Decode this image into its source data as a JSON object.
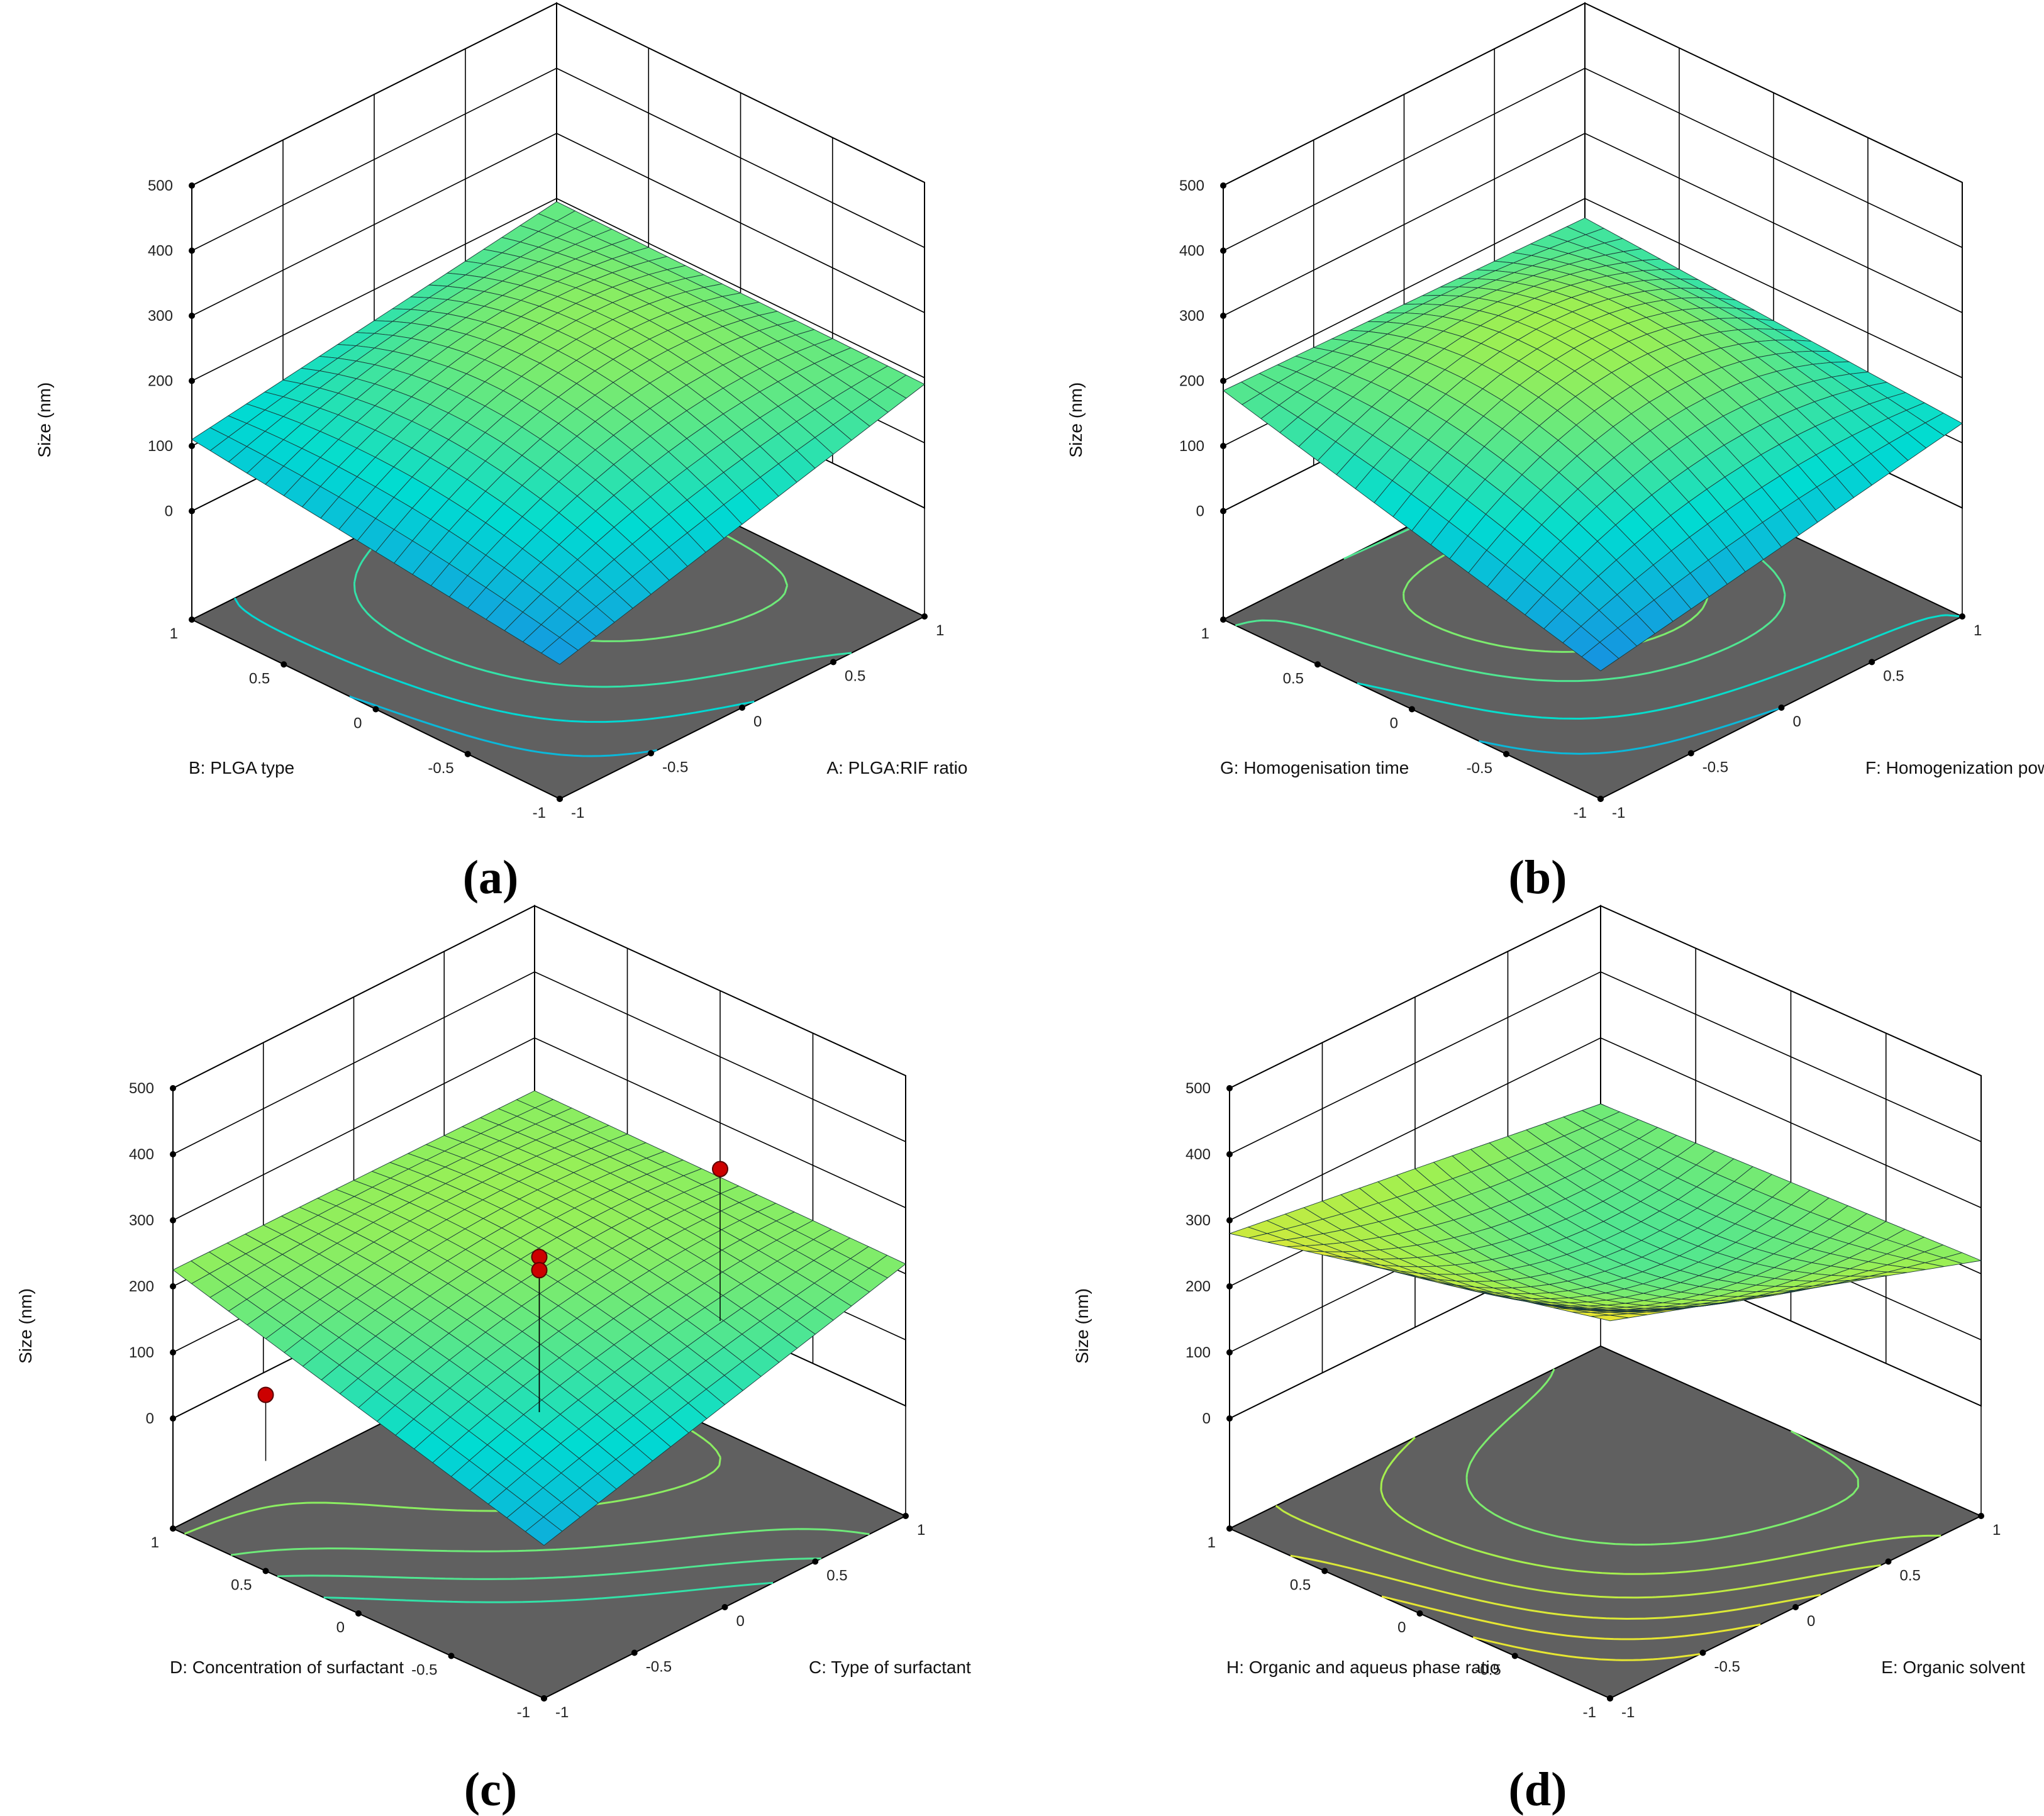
{
  "figure": {
    "panels": [
      {
        "caption": "(a)"
      },
      {
        "caption": "(b)"
      },
      {
        "caption": "(c)"
      },
      {
        "caption": "(d)"
      }
    ]
  },
  "colors": {
    "floor": "#606060",
    "grid": "#000000",
    "surface_line": "#1a3a3a",
    "design_point": "#cc0000",
    "surface_low": "#1e78e6",
    "surface_mid": "#00dcd2",
    "surface_high": "#a0f050",
    "surface_top": "#e6e632"
  },
  "chart_data": [
    {
      "type": "surface3d",
      "panel": "(a)",
      "zlabel": "Size (nm)",
      "xlabel": "A: PLGA:RIF ratio",
      "ylabel": "B: PLGA type",
      "x_ticks": [
        "-1",
        "-0.5",
        "0",
        "0.5",
        "1"
      ],
      "y_ticks": [
        "-1",
        "-0.5",
        "0",
        "0.5",
        "1"
      ],
      "z_ticks": [
        "0",
        "100",
        "200",
        "300",
        "400",
        "500"
      ],
      "zlim": [
        0,
        500
      ],
      "corners": {
        "x-1_y-1": 40,
        "x1_y-1": 190,
        "x-1_y1": 110,
        "x1_y1": 195
      },
      "center": 210,
      "contour_levels": [
        80,
        120,
        160,
        200
      ],
      "design_points": []
    },
    {
      "type": "surface3d",
      "panel": "(b)",
      "zlabel": "Size (nm)",
      "xlabel": "F: Homogenization  power",
      "ylabel": "G: Homogenisation time",
      "x_ticks": [
        "-1",
        "-0.5",
        "0",
        "0.5",
        "1"
      ],
      "y_ticks": [
        "-1",
        "-0.5",
        "0",
        "0.5",
        "1"
      ],
      "z_ticks": [
        "0",
        "100",
        "200",
        "300",
        "400",
        "500"
      ],
      "zlim": [
        0,
        500
      ],
      "corners": {
        "x-1_y-1": 30,
        "x1_y-1": 130,
        "x-1_y1": 185,
        "x1_y1": 170
      },
      "center": 230,
      "contour_levels": [
        80,
        130,
        180,
        210
      ],
      "design_points": []
    },
    {
      "type": "surface3d",
      "panel": "(c)",
      "zlabel": "Size (nm)",
      "xlabel": "C: Type of surfactant",
      "ylabel": "D: Concentration of surfactant",
      "x_ticks": [
        "-1",
        "-0.5",
        "0",
        "0.5",
        "1"
      ],
      "y_ticks": [
        "-1",
        "-0.5",
        "0",
        "0.5",
        "1"
      ],
      "z_ticks": [
        "0",
        "100",
        "200",
        "300",
        "400",
        "500"
      ],
      "zlim": [
        0,
        500
      ],
      "corners": {
        "x-1_y-1": 65,
        "x1_y-1": 215,
        "x-1_y1": 225,
        "x1_y1": 220
      },
      "center": 215,
      "contour_levels": [
        160,
        180,
        200,
        220,
        240
      ],
      "design_points": [
        {
          "x": 0,
          "y": 0,
          "z": 235
        },
        {
          "x": 0,
          "y": 0,
          "z": 215
        },
        {
          "x": 1,
          "y": 0,
          "z": 230
        },
        {
          "x": -1,
          "y": 0.5,
          "z": 100
        }
      ]
    },
    {
      "type": "surface3d",
      "panel": "(d)",
      "zlabel": "Size (nm)",
      "xlabel": "E: Organic solvent",
      "ylabel": "H: Organic and aqueus phase ratio",
      "x_ticks": [
        "-1",
        "-0.5",
        "0",
        "0.5",
        "1"
      ],
      "y_ticks": [
        "-1",
        "-0.5",
        "0",
        "0.5",
        "1"
      ],
      "z_ticks": [
        "0",
        "100",
        "200",
        "300",
        "400",
        "500"
      ],
      "zlim": [
        0,
        500
      ],
      "corners": {
        "x-1_y-1": 405,
        "x1_y-1": 220,
        "x-1_y1": 280,
        "x1_y1": 200
      },
      "center": 195,
      "contour_levels": [
        210,
        240,
        270,
        300,
        330,
        360
      ],
      "design_points": []
    }
  ]
}
